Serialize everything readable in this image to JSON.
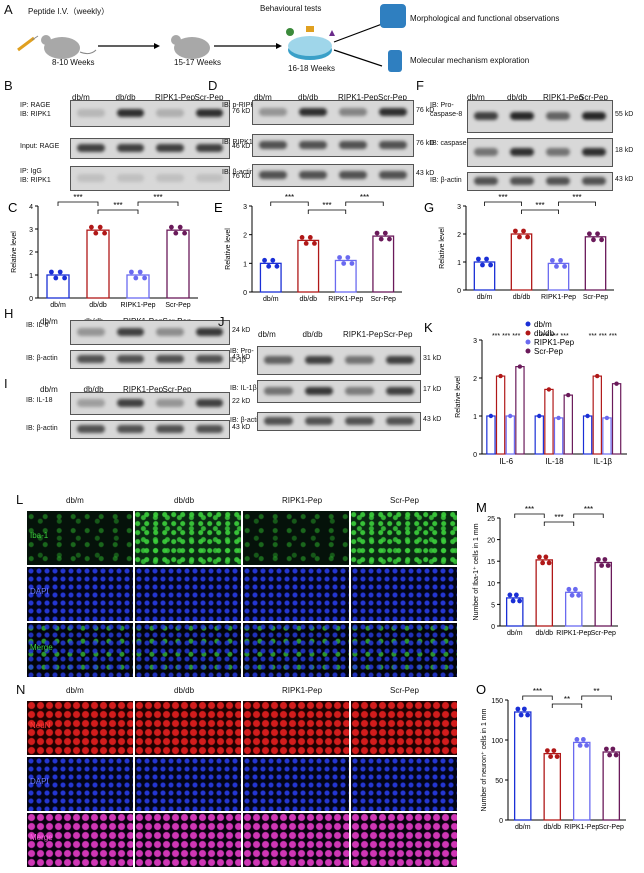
{
  "panels": {
    "A": {
      "letter": "A",
      "peptide": "Peptide I.V.（weekly）",
      "age1": "8-10 Weeks",
      "age2": "15-17 Weeks",
      "behav": "Behavioural tests",
      "age3": "16-18 Weeks",
      "out1": "Morphological and functional observations",
      "out2": "Molecular mechanism exploration"
    },
    "groups": [
      "db/m",
      "db/db",
      "RIPK1-Pep",
      "Scr-Pep"
    ],
    "B": {
      "letter": "B",
      "rows": [
        {
          "label": "IP: RAGE\nIB: RIPK1",
          "kd": "76 kD"
        },
        {
          "label": "Input: RAGE",
          "kd": "46 kD"
        },
        {
          "label": "IP: IgG\nIB: RIPK1",
          "kd": "76 kD"
        }
      ]
    },
    "D": {
      "letter": "D",
      "rows": [
        {
          "label": "IB: p-RIPK1",
          "kd": "76 kD"
        },
        {
          "label": "IB: RIPK1",
          "kd": "76 kD"
        },
        {
          "label": "IB: β-actin",
          "kd": "43 kD"
        }
      ]
    },
    "F": {
      "letter": "F",
      "rows": [
        {
          "label": "IB: Pro-\ncaspase-8",
          "kd": "55 kD"
        },
        {
          "label": "IB: caspase-8",
          "kd": "18 kD"
        },
        {
          "label": "IB: β-actin",
          "kd": "43 kD"
        }
      ]
    },
    "H": {
      "letter": "H",
      "rows": [
        {
          "label": "IB: IL-6",
          "kd": "24 kD"
        },
        {
          "label": "IB: β-actin",
          "kd": "43 kD"
        }
      ]
    },
    "I": {
      "letter": "I",
      "rows": [
        {
          "label": "IB: IL-18",
          "kd": "22 kD"
        },
        {
          "label": "IB: β-actin",
          "kd": "43 kD"
        }
      ]
    },
    "J": {
      "letter": "J",
      "rows": [
        {
          "label": "IB: Pro-\nIL-1β",
          "kd": "31 kD"
        },
        {
          "label": "IB: IL-1β",
          "kd": "17 kD"
        },
        {
          "label": "IB: β-actin",
          "kd": "43 kD"
        }
      ]
    },
    "L": {
      "letter": "L",
      "rows": [
        "Iba-1",
        "DAPI",
        "Merge"
      ]
    },
    "N": {
      "letter": "N",
      "rows": [
        "NeuN",
        "DAPI",
        "Merge"
      ]
    },
    "colors": {
      "dbm": "#1a2fd6",
      "dbdb": "#b01818",
      "ripk": "#6a6af0",
      "scr": "#6a1a5a"
    },
    "sig": {
      "three": "***",
      "two": "**"
    }
  },
  "chart_data": [
    {
      "id": "C",
      "type": "bar",
      "ylabel": "Relative level",
      "ylim": [
        0,
        4
      ],
      "yticks": [
        0,
        1,
        2,
        3,
        4
      ],
      "categories": [
        "db/m",
        "db/db",
        "RIPK1-Pep",
        "Scr-Pep"
      ],
      "values": [
        1.0,
        2.95,
        1.0,
        2.95
      ],
      "annotations": [
        "***",
        "***",
        "***"
      ]
    },
    {
      "id": "E",
      "type": "bar",
      "ylabel": "Relative level",
      "ylim": [
        0,
        3
      ],
      "yticks": [
        0,
        1,
        2,
        3
      ],
      "categories": [
        "db/m",
        "db/db",
        "RIPK1-Pep",
        "Scr-Pep"
      ],
      "values": [
        1.0,
        1.8,
        1.1,
        1.95
      ],
      "annotations": [
        "***",
        "***",
        "***"
      ]
    },
    {
      "id": "G",
      "type": "bar",
      "ylabel": "Relative level",
      "ylim": [
        0,
        3
      ],
      "yticks": [
        0,
        1,
        2,
        3
      ],
      "categories": [
        "db/m",
        "db/db",
        "RIPK1-Pep",
        "Scr-Pep"
      ],
      "values": [
        1.0,
        2.0,
        0.95,
        1.9
      ],
      "annotations": [
        "***",
        "***",
        "***"
      ]
    },
    {
      "id": "K",
      "type": "bar",
      "ylabel": "Relative level",
      "ylim": [
        0,
        3
      ],
      "yticks": [
        0,
        1,
        2,
        3
      ],
      "categories": [
        "IL-6",
        "IL-18",
        "IL-1β"
      ],
      "series": [
        {
          "name": "db/m",
          "values": [
            1.0,
            1.0,
            1.0
          ]
        },
        {
          "name": "db/db",
          "values": [
            2.05,
            1.7,
            2.05
          ]
        },
        {
          "name": "RIPK1-Pep",
          "values": [
            1.0,
            0.95,
            0.95
          ]
        },
        {
          "name": "Scr-Pep",
          "values": [
            2.3,
            1.55,
            1.85
          ]
        }
      ],
      "annotations": [
        "***",
        "***",
        "***"
      ]
    },
    {
      "id": "M",
      "type": "bar",
      "ylabel": "Number of Iba-1⁺ cells in 1 mm",
      "ylim": [
        0,
        25
      ],
      "yticks": [
        0,
        5,
        10,
        15,
        20,
        25
      ],
      "categories": [
        "db/m",
        "db/db",
        "RIPK1-Pep",
        "Scr-Pep"
      ],
      "values": [
        6.5,
        15.3,
        7.8,
        14.7
      ],
      "annotations": [
        "***",
        "***",
        "***"
      ]
    },
    {
      "id": "O",
      "type": "bar",
      "ylabel": "Number of neuron⁺ cells in 1 mm",
      "ylim": [
        0,
        150
      ],
      "yticks": [
        0,
        50,
        100,
        150
      ],
      "categories": [
        "db/m",
        "db/db",
        "RIPK1-Pep",
        "Scr-Pep"
      ],
      "values": [
        135,
        83,
        97,
        85
      ],
      "annotations": [
        "***",
        "**",
        "**"
      ]
    }
  ]
}
